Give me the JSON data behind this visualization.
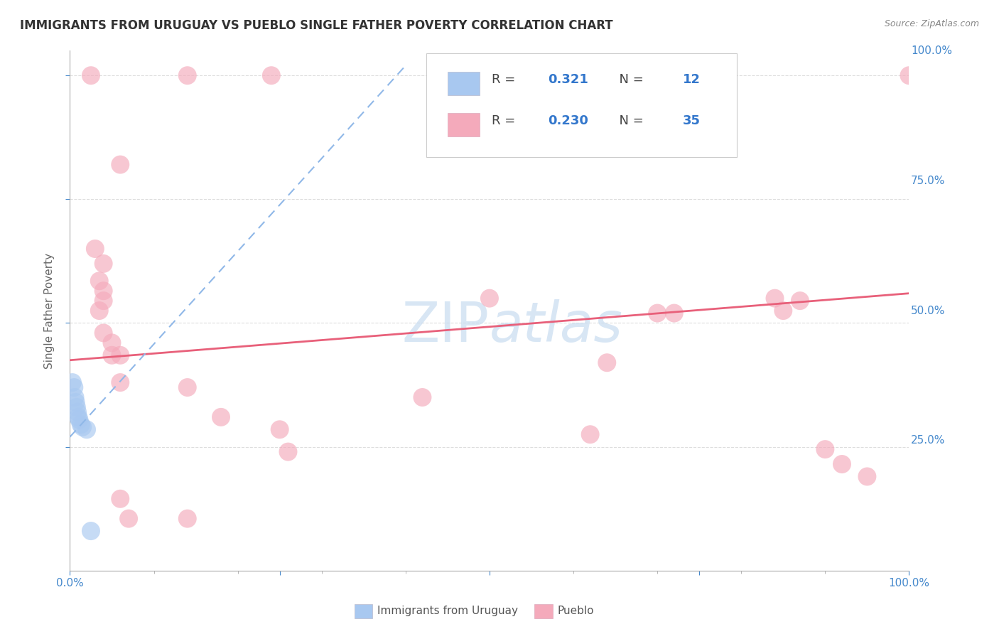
{
  "title": "IMMIGRANTS FROM URUGUAY VS PUEBLO SINGLE FATHER POVERTY CORRELATION CHART",
  "source": "Source: ZipAtlas.com",
  "ylabel": "Single Father Poverty",
  "legend_labels": [
    "Immigrants from Uruguay",
    "Pueblo"
  ],
  "watermark": "ZIPatlas",
  "xlim": [
    0.0,
    1.0
  ],
  "ylim": [
    0.0,
    1.05
  ],
  "xticks": [
    0.0,
    0.25,
    0.5,
    0.75,
    1.0
  ],
  "xticklabels": [
    "0.0%",
    "",
    "",
    "",
    "100.0%"
  ],
  "ytick_positions": [
    0.25,
    0.5,
    0.75,
    1.0
  ],
  "yticklabels": [
    "25.0%",
    "50.0%",
    "75.0%",
    "100.0%"
  ],
  "blue_R": 0.321,
  "blue_N": 12,
  "pink_R": 0.23,
  "pink_N": 35,
  "blue_color": "#A8C8F0",
  "pink_color": "#F4AABB",
  "blue_line_color": "#90B8E8",
  "pink_line_color": "#E8607A",
  "blue_scatter": [
    [
      0.003,
      0.38
    ],
    [
      0.005,
      0.37
    ],
    [
      0.006,
      0.35
    ],
    [
      0.007,
      0.34
    ],
    [
      0.008,
      0.33
    ],
    [
      0.009,
      0.32
    ],
    [
      0.01,
      0.31
    ],
    [
      0.011,
      0.305
    ],
    [
      0.013,
      0.295
    ],
    [
      0.015,
      0.29
    ],
    [
      0.02,
      0.285
    ],
    [
      0.025,
      0.08
    ]
  ],
  "pink_scatter": [
    [
      0.025,
      1.0
    ],
    [
      0.14,
      1.0
    ],
    [
      0.24,
      1.0
    ],
    [
      1.0,
      1.0
    ],
    [
      0.06,
      0.82
    ],
    [
      0.03,
      0.65
    ],
    [
      0.04,
      0.62
    ],
    [
      0.035,
      0.585
    ],
    [
      0.04,
      0.565
    ],
    [
      0.04,
      0.545
    ],
    [
      0.035,
      0.525
    ],
    [
      0.04,
      0.48
    ],
    [
      0.05,
      0.46
    ],
    [
      0.05,
      0.435
    ],
    [
      0.06,
      0.435
    ],
    [
      0.06,
      0.38
    ],
    [
      0.14,
      0.37
    ],
    [
      0.18,
      0.31
    ],
    [
      0.25,
      0.285
    ],
    [
      0.26,
      0.24
    ],
    [
      0.42,
      0.35
    ],
    [
      0.5,
      0.55
    ],
    [
      0.64,
      0.42
    ],
    [
      0.7,
      0.52
    ],
    [
      0.72,
      0.52
    ],
    [
      0.84,
      0.55
    ],
    [
      0.85,
      0.525
    ],
    [
      0.87,
      0.545
    ],
    [
      0.9,
      0.245
    ],
    [
      0.92,
      0.215
    ],
    [
      0.95,
      0.19
    ],
    [
      0.06,
      0.145
    ],
    [
      0.07,
      0.105
    ],
    [
      0.14,
      0.105
    ],
    [
      0.62,
      0.275
    ]
  ],
  "pink_line_intercept": 0.425,
  "pink_line_slope": 0.135,
  "blue_line_x0": 0.0,
  "blue_line_y0": 0.27,
  "blue_line_x1": 0.4,
  "blue_line_y1": 1.02,
  "bg_color": "#FFFFFF",
  "grid_color": "#DDDDDD",
  "title_color": "#333333",
  "tick_color": "#4488CC",
  "axis_color": "#AAAAAA"
}
